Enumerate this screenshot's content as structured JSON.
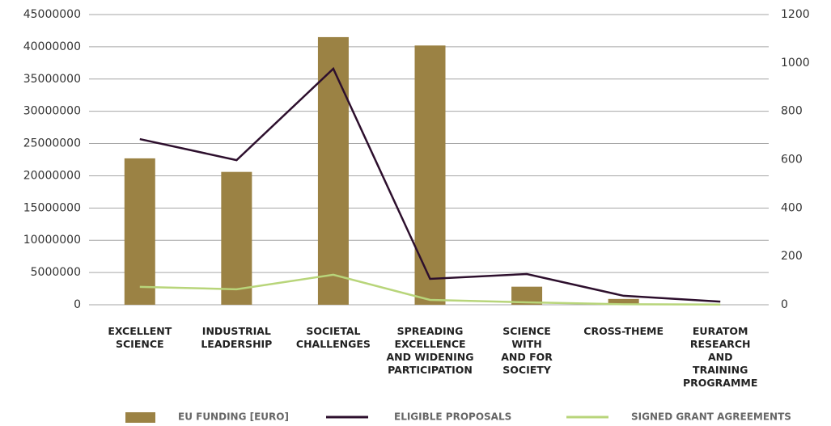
{
  "chart_data": {
    "type": "bar_line",
    "categories": [
      "EXCELLENT SCIENCE",
      "INDUSTRIAL LEADERSHIP",
      "SOCIETAL CHALLENGES",
      "SPREADING EXCELLENCE AND WIDENING PARTICIPATION",
      "SCIENCE WITH AND FOR SOCIETY",
      "CROSS-THEME",
      "EURATOM RESEARCH AND TRAINING PROGRAMME"
    ],
    "series": [
      {
        "name": "EU FUNDING [EURO]",
        "kind": "bar",
        "color": "#9b8244",
        "values": [
          22700000,
          20600000,
          41500000,
          40200000,
          2800000,
          900000,
          0
        ]
      },
      {
        "name": "ELIGIBLE PROPOSALS",
        "kind": "line",
        "axis": "y2",
        "color": "#2d0f2d",
        "values": [
          685,
          598,
          976,
          107,
          127,
          37,
          13
        ]
      },
      {
        "name": "SIGNED GRANT AGREEMENTS",
        "kind": "line",
        "axis": "y2",
        "color": "#b8d57a",
        "values": [
          74,
          64,
          124,
          20,
          10,
          2,
          1
        ]
      }
    ],
    "ylim": [
      0,
      45000000
    ],
    "yticks": [
      0,
      5000000,
      10000000,
      15000000,
      20000000,
      25000000,
      30000000,
      35000000,
      40000000,
      45000000
    ],
    "y2lim": [
      0,
      1200
    ],
    "y2ticks": [
      0,
      200,
      400,
      600,
      800,
      1000,
      1200
    ],
    "grid": true,
    "legend": "bottom"
  }
}
